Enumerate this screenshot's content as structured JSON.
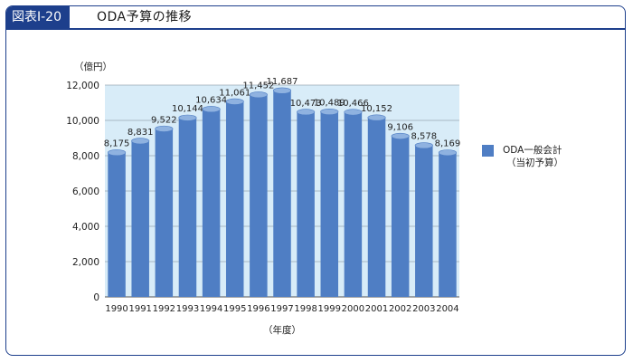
{
  "figure": {
    "tag": "図表Ⅰ-20",
    "title": "ODA予算の推移"
  },
  "colors": {
    "frame": "#1d3f8c",
    "plot_bg": "#d8ecf8",
    "bar": "#4f7ec4",
    "bar_top": "#8fb2e0"
  },
  "legend": {
    "label": "ODA一般会計",
    "sublabel": "（当初予算）"
  },
  "chart_data": {
    "type": "bar",
    "ylabel": "（億円）",
    "xlabel": "（年度）",
    "ylim": [
      0,
      12000
    ],
    "yticks": [
      0,
      2000,
      4000,
      6000,
      8000,
      10000,
      12000
    ],
    "ytick_labels": [
      "0",
      "2,000",
      "4,000",
      "6,000",
      "8,000",
      "10,000",
      "12,000"
    ],
    "grid": true,
    "legend_position": "right",
    "categories": [
      "1990",
      "1991",
      "1992",
      "1993",
      "1994",
      "1995",
      "1996",
      "1997",
      "1998",
      "1999",
      "2000",
      "2001",
      "2002",
      "2003",
      "2004"
    ],
    "series": [
      {
        "name": "ODA一般会計（当初予算）",
        "values": [
          8175,
          8831,
          9522,
          10144,
          10634,
          11061,
          11452,
          11687,
          10473,
          10489,
          10466,
          10152,
          9106,
          8578,
          8169
        ],
        "labels": [
          "8,175",
          "8,831",
          "9,522",
          "10,144",
          "10,634",
          "11,061",
          "11,452",
          "11,687",
          "10,473",
          "10,489",
          "10,466",
          "10,152",
          "9,106",
          "8,578",
          "8,169"
        ]
      }
    ]
  }
}
